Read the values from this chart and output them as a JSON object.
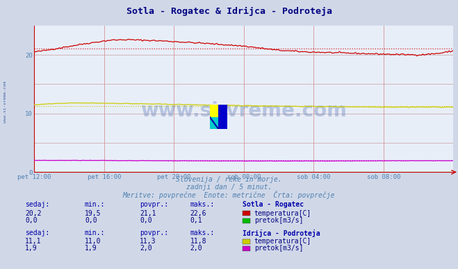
{
  "title": "Sotla - Rogatec & Idrijca - Podroteja",
  "title_color": "#000080",
  "bg_color": "#d0d8e8",
  "plot_bg_color": "#e8eef8",
  "grid_color_v": "#d08080",
  "grid_color_h": "#c8a0a0",
  "xlabel_color": "#5080b0",
  "watermark_text": "www.si-vreme.com",
  "subtitle1": "Slovenija / reke in morje.",
  "subtitle2": "zadnji dan / 5 minut.",
  "subtitle3": "Meritve: povprečne  Enote: metrične  Črta: povprečje",
  "n_points": 288,
  "xtick_labels": [
    "pet 12:00",
    "pet 16:00",
    "pet 20:00",
    "sob 00:00",
    "sob 04:00",
    "sob 08:00"
  ],
  "xtick_positions": [
    0.0,
    0.1667,
    0.3333,
    0.5,
    0.6667,
    0.8333
  ],
  "ylim": [
    0,
    25
  ],
  "ytick_values": [
    0,
    10,
    20
  ],
  "sotla_temp_color": "#cc0000",
  "sotla_temp_avg": 21.1,
  "sotla_temp_min": 19.5,
  "sotla_temp_max": 22.6,
  "sotla_temp_now": 20.2,
  "sotla_flow_color": "#00bb00",
  "sotla_flow_avg": 0.0,
  "sotla_flow_min": 0.0,
  "sotla_flow_max": 0.1,
  "sotla_flow_now": 0.0,
  "idrijca_temp_color": "#cccc00",
  "idrijca_temp_avg": 11.3,
  "idrijca_temp_min": 11.0,
  "idrijca_temp_max": 11.8,
  "idrijca_temp_now": 11.1,
  "idrijca_flow_color": "#cc00cc",
  "idrijca_flow_avg": 2.0,
  "idrijca_flow_min": 1.9,
  "idrijca_flow_max": 2.0,
  "idrijca_flow_now": 1.9,
  "table_header_color": "#0000aa",
  "table_value_color": "#000080",
  "sidebar_text": "www.si-vreme.com",
  "sidebar_color": "#4060a0",
  "axis_color": "#cc0000",
  "subtitle_color": "#5080b0"
}
